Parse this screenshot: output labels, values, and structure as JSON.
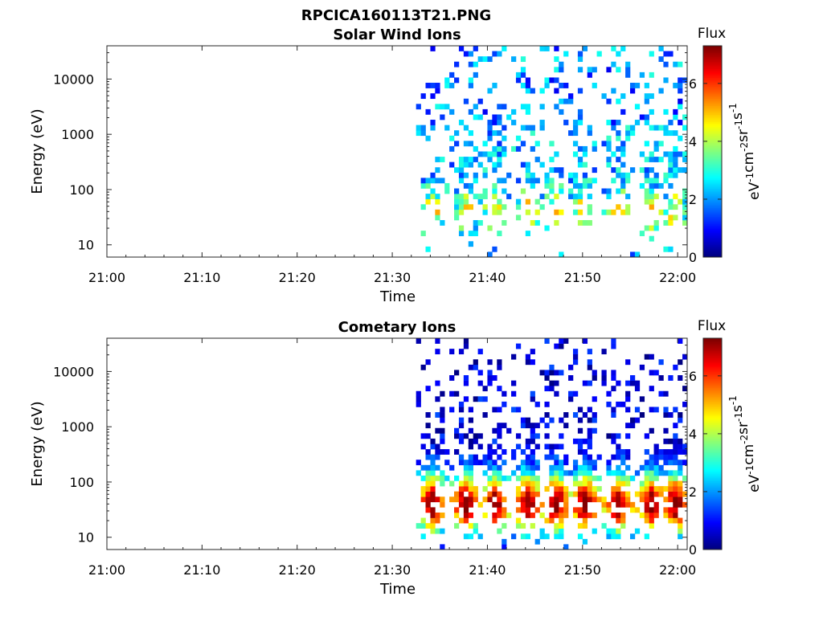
{
  "figure": {
    "suptitle": "RPCICA160113T21.PNG"
  },
  "colorbar": {
    "label": "Flux",
    "unit_base": [
      "eV",
      "cm",
      "sr",
      "s"
    ],
    "unit_exp": [
      "-1",
      "-2",
      "-1",
      "-1"
    ],
    "ticks": [
      "0",
      "2",
      "4",
      "6"
    ],
    "range": [
      0,
      7.3
    ],
    "colormap": "jet"
  },
  "chart_data": [
    {
      "type": "heatmap",
      "title": "Solar Wind Ions",
      "xlabel": "Time",
      "ylabel": "Energy (eV)",
      "x_ticks": [
        "21:00",
        "21:10",
        "21:20",
        "21:30",
        "21:40",
        "21:50",
        "22:00"
      ],
      "y_ticks": [
        "10",
        "100",
        "1000",
        "10000"
      ],
      "y_scale": "log",
      "x_range": [
        "21:00",
        "22:01"
      ],
      "y_range": [
        6,
        40000
      ],
      "z_range": [
        0,
        7.3
      ],
      "data_start": "21:32:30",
      "bursts_minutes": [
        34.0,
        37.5,
        40.5,
        44.0,
        47.0,
        50.0,
        53.5,
        57.0,
        59.5
      ],
      "peak_energy_eV": 40,
      "peak_flux": 4.5,
      "description": ""
    },
    {
      "type": "heatmap",
      "title": "Cometary Ions",
      "xlabel": "Time",
      "ylabel": "Energy (eV)",
      "x_ticks": [
        "21:00",
        "21:10",
        "21:20",
        "21:30",
        "21:40",
        "21:50",
        "22:00"
      ],
      "y_ticks": [
        "10",
        "100",
        "1000",
        "10000"
      ],
      "y_scale": "log",
      "x_range": [
        "21:00",
        "22:01"
      ],
      "y_range": [
        6,
        40000
      ],
      "z_range": [
        0,
        7.3
      ],
      "data_start": "21:32:30",
      "bursts_minutes": [
        34.0,
        37.5,
        40.5,
        44.0,
        47.0,
        50.0,
        53.5,
        57.0,
        59.5
      ],
      "peak_energy_eV": 40,
      "peak_flux": 6.8,
      "description": ""
    }
  ]
}
